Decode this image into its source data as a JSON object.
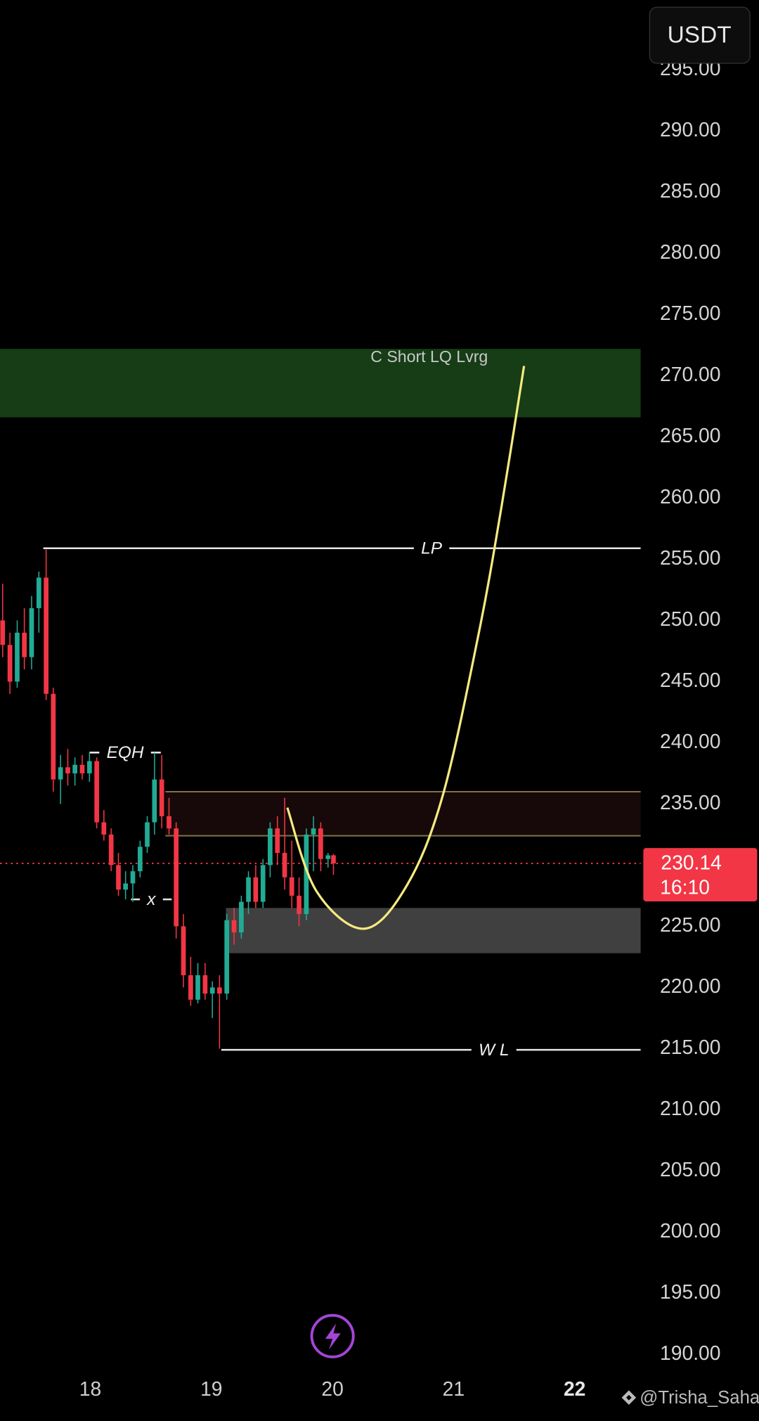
{
  "header": {
    "currency_button": "USDT"
  },
  "footer": {
    "watermark": "@Trisha_Saha"
  },
  "chart_data": {
    "type": "candlestick",
    "x": [
      17.276,
      17.336,
      17.396,
      17.455,
      17.515,
      17.575,
      17.635,
      17.694,
      17.754,
      17.814,
      17.873,
      17.933,
      17.993,
      18.053,
      18.112,
      18.172,
      18.232,
      18.291,
      18.351,
      18.411,
      18.47,
      18.53,
      18.59,
      18.65,
      18.709,
      18.769,
      18.829,
      18.888,
      18.948,
      19.008,
      19.067,
      19.127,
      19.187,
      19.247,
      19.306,
      19.366,
      19.426,
      19.485,
      19.545,
      19.605,
      19.664,
      19.724,
      19.784,
      19.843,
      19.903,
      19.963,
      20.008
    ],
    "open": [
      250,
      248,
      245,
      249,
      247,
      251,
      253.5,
      244,
      237,
      238,
      237.5,
      238.2,
      237.5,
      238.5,
      233.5,
      232.5,
      230,
      228,
      228.5,
      229.5,
      231.5,
      233.5,
      237,
      234,
      233,
      225,
      221,
      219,
      221,
      219.5,
      220,
      219.5,
      225.5,
      224.5,
      227,
      229,
      227,
      230,
      233,
      231,
      229,
      227.5,
      226,
      232.5,
      233,
      230.5,
      230.8
    ],
    "high": [
      253,
      249,
      250,
      251,
      252,
      254,
      255.8,
      244.5,
      239,
      239.5,
      238.8,
      239,
      239.2,
      238.8,
      234.5,
      233,
      231,
      229.5,
      230,
      232,
      234,
      239.2,
      239,
      235.5,
      233.5,
      226,
      222.5,
      222,
      222,
      220.5,
      221,
      226,
      226.5,
      227.5,
      229.5,
      230,
      230.5,
      233.5,
      234,
      235.5,
      232,
      229,
      233,
      234,
      233.5,
      231,
      230.9
    ],
    "low": [
      247,
      244,
      244.5,
      246,
      246,
      249,
      243.5,
      236,
      235,
      236.5,
      236.5,
      237,
      236.8,
      233,
      232,
      229.5,
      227.5,
      227.2,
      227,
      229,
      231,
      232.5,
      233,
      232.5,
      224,
      220,
      218.5,
      218.7,
      219,
      217.5,
      215,
      219,
      223.5,
      224,
      226,
      226.5,
      226.5,
      229,
      230,
      228,
      226.5,
      225,
      225.5,
      229.5,
      229.5,
      229.8,
      229.2
    ],
    "close": [
      248,
      245,
      249,
      247,
      251,
      253.5,
      244,
      237,
      238,
      237.5,
      238.2,
      237.5,
      238.5,
      233.5,
      232.5,
      230,
      228,
      228.5,
      229.5,
      231.5,
      233.5,
      237,
      234,
      233,
      225,
      221,
      219,
      221,
      219.5,
      220,
      219.5,
      225.5,
      224.5,
      227,
      229,
      227,
      230,
      233,
      231,
      229,
      227.5,
      226,
      232.5,
      233,
      230.5,
      230.8,
      230.14
    ],
    "up_color": "#22ab94",
    "down_color": "#f23645",
    "xlim": [
      17.254,
      22.545
    ],
    "xticks": [
      18,
      19,
      20,
      21,
      22
    ],
    "ylim": [
      187,
      300
    ],
    "yticks": [
      {
        "value": 295,
        "label": "295.00"
      },
      {
        "value": 290,
        "label": "290.00"
      },
      {
        "value": 285,
        "label": "285.00"
      },
      {
        "value": 280,
        "label": "280.00"
      },
      {
        "value": 275,
        "label": "275.00"
      },
      {
        "value": 270,
        "label": "270.00"
      },
      {
        "value": 265,
        "label": "265.00"
      },
      {
        "value": 260,
        "label": "260.00"
      },
      {
        "value": 255,
        "label": "255.00"
      },
      {
        "value": 250,
        "label": "250.00"
      },
      {
        "value": 245,
        "label": "245.00"
      },
      {
        "value": 240,
        "label": "240.00"
      },
      {
        "value": 235,
        "label": "235.00"
      },
      {
        "value": 230,
        "label": "230.00"
      },
      {
        "value": 225,
        "label": "225.00"
      },
      {
        "value": 220,
        "label": "220.00"
      },
      {
        "value": 215,
        "label": "215.00"
      },
      {
        "value": 210,
        "label": "210.00"
      },
      {
        "value": 205,
        "label": "205.00"
      },
      {
        "value": 200,
        "label": "200.00"
      },
      {
        "value": 195,
        "label": "195.00"
      },
      {
        "value": 190,
        "label": "190.00"
      }
    ],
    "last_price": 230.14,
    "countdown": "16:10",
    "last_price_color": "#f23645",
    "zones": [
      {
        "label": "C Short LQ Lvrg",
        "from": 272.2,
        "to": 266.6,
        "color": "#163d16"
      },
      {
        "from": 236.0,
        "to": 232.4,
        "start": 18.62,
        "color": "#170909",
        "border": "#7d7548"
      },
      {
        "from": 226.5,
        "to": 222.8,
        "start": 19.12,
        "color": "#404040"
      }
    ],
    "levels": [
      {
        "label": "LP",
        "price": 255.9,
        "start": 17.612
      },
      {
        "label": "EQH",
        "price": 239.2,
        "start": 17.993,
        "end": 18.582
      },
      {
        "label": "x",
        "price": 227.2,
        "start": 18.336,
        "end": 18.672
      },
      {
        "label": "W L",
        "price": 214.9,
        "start": 19.082
      }
    ],
    "projection": {
      "x": [
        19.627,
        19.866,
        20.261,
        20.612,
        20.911,
        21.209,
        21.396,
        21.582
      ],
      "y": [
        234.7,
        227.9,
        224.8,
        228.3,
        235.7,
        249,
        259.3,
        270.8
      ],
      "color": "#f7ea80"
    }
  }
}
